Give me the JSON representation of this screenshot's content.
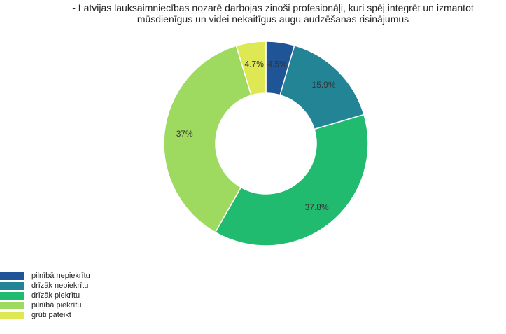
{
  "title": {
    "line1": "- Latvijas lauksaimniecības nozarē darbojas zinoši profesionāļi, kuri spēj integrēt un izmantot",
    "line2": "mūsdienīgus un videi nekaitīgus augu audzēšanas risinājumus"
  },
  "chart_data": {
    "type": "pie",
    "variant": "donut",
    "title": "- Latvijas lauksaimniecības nozarē darbojas zinoši profesionāļi, kuri spēj integrēt un izmantot mūsdienīgus un videi nekaitīgus augu audzēšanas risinājumus",
    "legend_position": "bottom-left",
    "categories": [
      "pilnībā nepiekrītu",
      "drīzāk nepiekrītu",
      "drīzāk piekrītu",
      "pilnībā piekrītu",
      "grūti pateikt"
    ],
    "values": [
      4.5,
      15.9,
      37.8,
      37,
      4.7
    ],
    "labels": [
      "4.5%",
      "15.9%",
      "37.8%",
      "37%",
      "4.7%"
    ],
    "colors": [
      "#1f5597",
      "#238495",
      "#20bb6e",
      "#9ed960",
      "#dde853"
    ]
  },
  "legend": {
    "items": [
      {
        "label": "pilnībā nepiekrītu",
        "color": "#1f5597"
      },
      {
        "label": "drīzāk nepiekrītu",
        "color": "#238495"
      },
      {
        "label": "drīzāk piekrītu",
        "color": "#20bb6e"
      },
      {
        "label": "pilnībā piekrītu",
        "color": "#9ed960"
      },
      {
        "label": "grūti pateikt",
        "color": "#dde853"
      }
    ]
  }
}
